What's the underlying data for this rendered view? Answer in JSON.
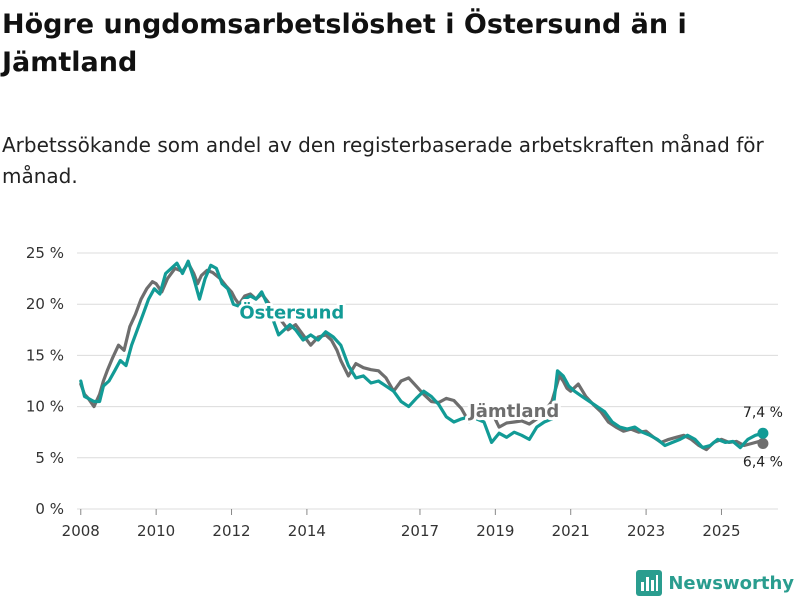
{
  "header": {
    "title": "Högre ungdomsarbetslöshet i Östersund än i Jämtland",
    "subtitle": "Arbetssökande som andel av den registerbaserade arbetskraften månad för månad."
  },
  "branding": {
    "name": "Newsworthy",
    "color": "#2a9d8f"
  },
  "chart_data": {
    "type": "line",
    "title": "Högre ungdomsarbetslöshet i Östersund än i Jämtland",
    "subtitle": "Arbetssökande som andel av den registerbaserade arbetskraften månad för månad.",
    "xlabel": "",
    "ylabel": "",
    "xlim": [
      2007.9,
      2026.5
    ],
    "ylim": [
      0,
      25
    ],
    "y_ticks": [
      0,
      5,
      10,
      15,
      20,
      25
    ],
    "y_tick_labels": [
      "0 %",
      "5 %",
      "10 %",
      "15 %",
      "20 %",
      "25 %"
    ],
    "x_ticks": [
      2008,
      2010,
      2012,
      2014,
      2017,
      2019,
      2021,
      2023,
      2025
    ],
    "x_tick_labels": [
      "2008",
      "2010",
      "2012",
      "2014",
      "2017",
      "2019",
      "2021",
      "2023",
      "2025"
    ],
    "grid": true,
    "series": [
      {
        "name": "Jämtland",
        "label": "Jämtland",
        "color": "#6e6e6e",
        "end_label": "6,4 %",
        "x": [
          2008.0,
          2008.1,
          2008.2,
          2008.35,
          2008.5,
          2008.6,
          2008.7,
          2008.85,
          2009.0,
          2009.15,
          2009.3,
          2009.45,
          2009.6,
          2009.75,
          2009.9,
          2010.0,
          2010.15,
          2010.3,
          2010.5,
          2010.7,
          2010.85,
          2011.0,
          2011.1,
          2011.2,
          2011.35,
          2011.5,
          2011.6,
          2011.7,
          2011.85,
          2012.0,
          2012.1,
          2012.2,
          2012.35,
          2012.5,
          2012.65,
          2012.8,
          2012.95,
          2013.1,
          2013.3,
          2013.5,
          2013.7,
          2013.9,
          2014.1,
          2014.3,
          2014.5,
          2014.65,
          2014.8,
          2014.9,
          2015.1,
          2015.3,
          2015.5,
          2015.7,
          2015.9,
          2016.1,
          2016.3,
          2016.5,
          2016.7,
          2016.9,
          2017.1,
          2017.3,
          2017.5,
          2017.7,
          2017.9,
          2018.1,
          2018.3,
          2018.5,
          2018.7,
          2018.9,
          2019.1,
          2019.3,
          2019.5,
          2019.7,
          2019.9,
          2020.1,
          2020.3,
          2020.5,
          2020.7,
          2020.8,
          2020.9,
          2021.0,
          2021.2,
          2021.4,
          2021.6,
          2021.8,
          2022.0,
          2022.2,
          2022.4,
          2022.6,
          2022.8,
          2023.0,
          2023.2,
          2023.4,
          2023.6,
          2023.8,
          2024.0,
          2024.2,
          2024.4,
          2024.6,
          2024.8,
          2025.0,
          2025.2,
          2025.4,
          2025.6,
          2025.8,
          2026.0,
          2026.1
        ],
        "values": [
          12.2,
          11.2,
          10.8,
          10.0,
          11.2,
          12.5,
          13.5,
          14.8,
          16.0,
          15.5,
          17.8,
          19.0,
          20.5,
          21.5,
          22.2,
          22.0,
          21.2,
          22.5,
          23.5,
          23.2,
          24.0,
          23.0,
          22.0,
          22.8,
          23.3,
          23.1,
          22.8,
          22.5,
          21.8,
          21.2,
          20.5,
          20.0,
          20.8,
          21.0,
          20.5,
          21.0,
          20.3,
          19.5,
          18.5,
          17.5,
          18.0,
          17.0,
          16.0,
          16.8,
          17.0,
          16.5,
          15.5,
          14.5,
          13.0,
          14.2,
          13.8,
          13.6,
          13.5,
          12.8,
          11.5,
          12.5,
          12.8,
          12.0,
          11.2,
          10.5,
          10.4,
          10.8,
          10.6,
          9.8,
          8.5,
          9.2,
          9.0,
          9.5,
          8.0,
          8.4,
          8.5,
          8.6,
          8.3,
          8.8,
          9.5,
          10.5,
          13.0,
          12.5,
          11.8,
          11.5,
          12.2,
          11.0,
          10.2,
          9.5,
          8.5,
          8.0,
          7.6,
          7.8,
          7.5,
          7.6,
          7.0,
          6.5,
          6.8,
          7.0,
          7.2,
          6.8,
          6.2,
          5.8,
          6.5,
          6.8,
          6.5,
          6.6,
          6.2,
          6.4,
          6.6,
          6.4
        ]
      },
      {
        "name": "Östersund",
        "label": "Östersund",
        "color": "#129b96",
        "end_label": "7,4 %",
        "x": [
          2008.0,
          2008.1,
          2008.2,
          2008.35,
          2008.5,
          2008.6,
          2008.75,
          2008.9,
          2009.05,
          2009.2,
          2009.35,
          2009.5,
          2009.65,
          2009.8,
          2009.95,
          2010.1,
          2010.25,
          2010.4,
          2010.55,
          2010.7,
          2010.85,
          2011.0,
          2011.15,
          2011.3,
          2011.45,
          2011.6,
          2011.75,
          2011.9,
          2012.05,
          2012.2,
          2012.35,
          2012.5,
          2012.65,
          2012.8,
          2012.95,
          2013.1,
          2013.25,
          2013.4,
          2013.55,
          2013.7,
          2013.9,
          2014.1,
          2014.3,
          2014.5,
          2014.7,
          2014.9,
          2015.1,
          2015.3,
          2015.5,
          2015.7,
          2015.9,
          2016.1,
          2016.3,
          2016.5,
          2016.7,
          2016.9,
          2017.1,
          2017.3,
          2017.5,
          2017.7,
          2017.9,
          2018.1,
          2018.3,
          2018.5,
          2018.7,
          2018.9,
          2019.1,
          2019.3,
          2019.5,
          2019.7,
          2019.9,
          2020.1,
          2020.3,
          2020.5,
          2020.65,
          2020.8,
          2020.95,
          2021.1,
          2021.3,
          2021.5,
          2021.7,
          2021.9,
          2022.1,
          2022.3,
          2022.5,
          2022.7,
          2022.9,
          2023.1,
          2023.3,
          2023.5,
          2023.7,
          2023.9,
          2024.1,
          2024.3,
          2024.5,
          2024.7,
          2024.9,
          2025.1,
          2025.3,
          2025.5,
          2025.7,
          2025.9,
          2026.1
        ],
        "values": [
          12.5,
          11.0,
          10.8,
          10.5,
          10.5,
          12.0,
          12.5,
          13.5,
          14.5,
          14.0,
          16.0,
          17.5,
          19.0,
          20.5,
          21.5,
          21.0,
          23.0,
          23.5,
          24.0,
          23.0,
          24.2,
          22.5,
          20.5,
          22.5,
          23.8,
          23.5,
          22.0,
          21.5,
          20.0,
          19.8,
          20.5,
          20.8,
          20.5,
          21.2,
          20.0,
          18.5,
          17.0,
          17.5,
          18.0,
          17.5,
          16.5,
          17.0,
          16.5,
          17.3,
          16.8,
          16.0,
          14.0,
          12.8,
          13.0,
          12.3,
          12.5,
          12.0,
          11.5,
          10.5,
          10.0,
          10.8,
          11.5,
          11.0,
          10.2,
          9.0,
          8.5,
          8.8,
          9.0,
          8.8,
          8.5,
          6.5,
          7.4,
          7.0,
          7.5,
          7.2,
          6.8,
          8.0,
          8.5,
          8.8,
          13.5,
          13.0,
          12.0,
          11.5,
          11.0,
          10.5,
          10.0,
          9.5,
          8.5,
          8.0,
          7.8,
          8.0,
          7.5,
          7.2,
          6.8,
          6.2,
          6.5,
          6.8,
          7.2,
          6.8,
          6.0,
          6.2,
          6.8,
          6.5,
          6.6,
          6.0,
          6.8,
          7.2,
          7.4
        ]
      }
    ],
    "source": "Newsworthy"
  }
}
